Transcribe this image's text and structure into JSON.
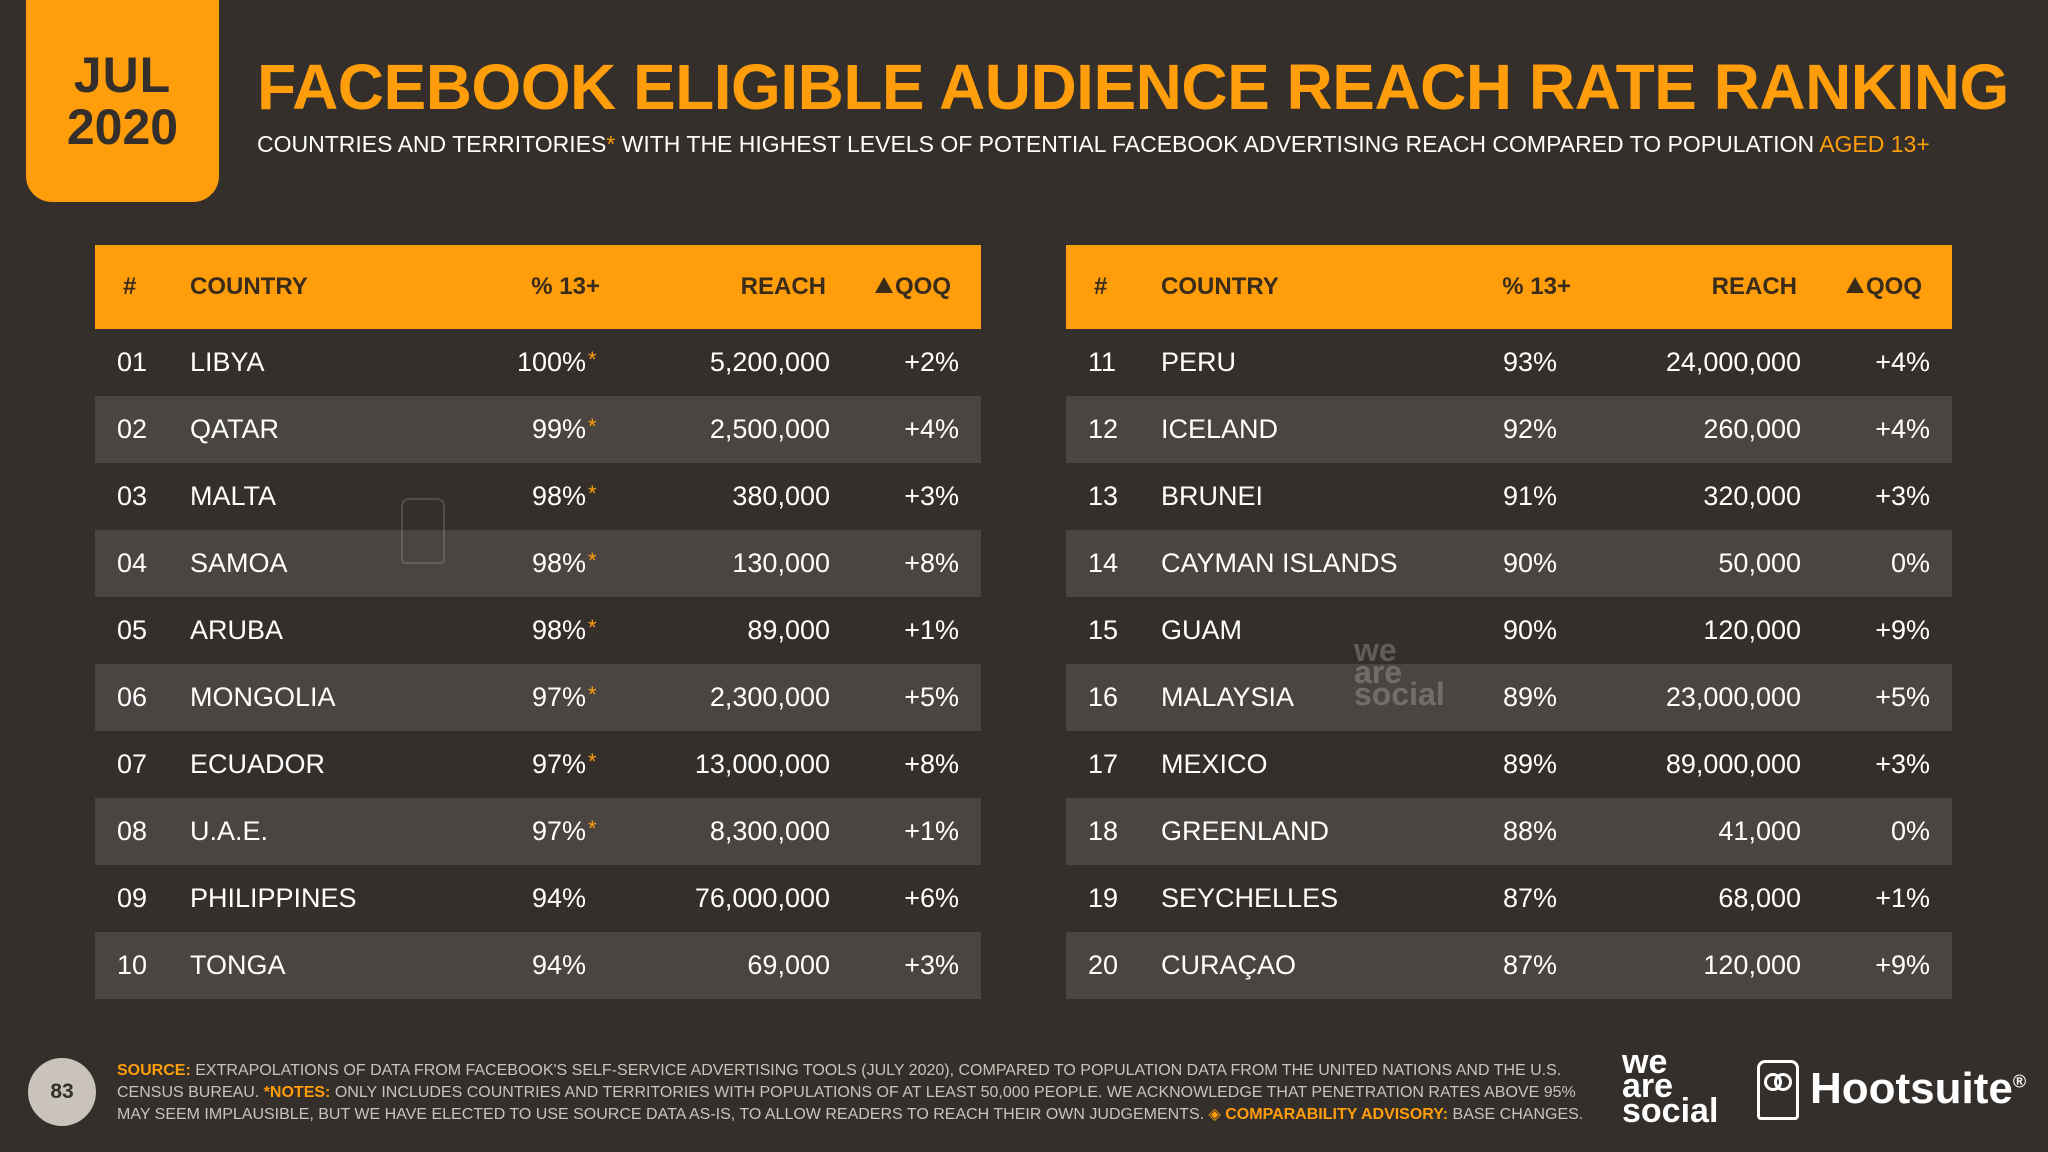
{
  "badge": {
    "month": "JUL",
    "year": "2020"
  },
  "title": "FACEBOOK ELIGIBLE AUDIENCE REACH RATE RANKING",
  "subtitle": {
    "part1": "COUNTRIES AND TERRITORIES",
    "asterisk": "*",
    "part2": " WITH THE HIGHEST LEVELS OF POTENTIAL FACEBOOK ADVERTISING REACH COMPARED TO POPULATION ",
    "aged": "AGED 13+"
  },
  "headers": {
    "num": "#",
    "country": "COUNTRY",
    "pct": "% 13+",
    "reach": "REACH",
    "qoq": "QOQ"
  },
  "left_rows": [
    {
      "num": "01",
      "country": "LIBYA",
      "pct": "100%",
      "star": "*",
      "reach": "5,200,000",
      "qoq": "+2%"
    },
    {
      "num": "02",
      "country": "QATAR",
      "pct": "99%",
      "star": "*",
      "reach": "2,500,000",
      "qoq": "+4%"
    },
    {
      "num": "03",
      "country": "MALTA",
      "pct": "98%",
      "star": "*",
      "reach": "380,000",
      "qoq": "+3%"
    },
    {
      "num": "04",
      "country": "SAMOA",
      "pct": "98%",
      "star": "*",
      "reach": "130,000",
      "qoq": "+8%"
    },
    {
      "num": "05",
      "country": "ARUBA",
      "pct": "98%",
      "star": "*",
      "reach": "89,000",
      "qoq": "+1%"
    },
    {
      "num": "06",
      "country": "MONGOLIA",
      "pct": "97%",
      "star": "*",
      "reach": "2,300,000",
      "qoq": "+5%"
    },
    {
      "num": "07",
      "country": "ECUADOR",
      "pct": "97%",
      "star": "*",
      "reach": "13,000,000",
      "qoq": "+8%"
    },
    {
      "num": "08",
      "country": "U.A.E.",
      "pct": "97%",
      "star": "*",
      "reach": "8,300,000",
      "qoq": "+1%"
    },
    {
      "num": "09",
      "country": "PHILIPPINES",
      "pct": "94%",
      "star": "",
      "reach": "76,000,000",
      "qoq": "+6%"
    },
    {
      "num": "10",
      "country": "TONGA",
      "pct": "94%",
      "star": "",
      "reach": "69,000",
      "qoq": "+3%"
    }
  ],
  "right_rows": [
    {
      "num": "11",
      "country": "PERU",
      "pct": "93%",
      "star": "",
      "reach": "24,000,000",
      "qoq": "+4%"
    },
    {
      "num": "12",
      "country": "ICELAND",
      "pct": "92%",
      "star": "",
      "reach": "260,000",
      "qoq": "+4%"
    },
    {
      "num": "13",
      "country": "BRUNEI",
      "pct": "91%",
      "star": "",
      "reach": "320,000",
      "qoq": "+3%"
    },
    {
      "num": "14",
      "country": "CAYMAN ISLANDS",
      "pct": "90%",
      "star": "",
      "reach": "50,000",
      "qoq": "0%"
    },
    {
      "num": "15",
      "country": "GUAM",
      "pct": "90%",
      "star": "",
      "reach": "120,000",
      "qoq": "+9%"
    },
    {
      "num": "16",
      "country": "MALAYSIA",
      "pct": "89%",
      "star": "",
      "reach": "23,000,000",
      "qoq": "+5%"
    },
    {
      "num": "17",
      "country": "MEXICO",
      "pct": "89%",
      "star": "",
      "reach": "89,000,000",
      "qoq": "+3%"
    },
    {
      "num": "18",
      "country": "GREENLAND",
      "pct": "88%",
      "star": "",
      "reach": "41,000",
      "qoq": "0%"
    },
    {
      "num": "19",
      "country": "SEYCHELLES",
      "pct": "87%",
      "star": "",
      "reach": "68,000",
      "qoq": "+1%"
    },
    {
      "num": "20",
      "country": "CURAÇAO",
      "pct": "87%",
      "star": "",
      "reach": "120,000",
      "qoq": "+9%"
    }
  ],
  "footer": {
    "page": "83",
    "source_label": "SOURCE:",
    "source_text": " EXTRAPOLATIONS OF DATA FROM FACEBOOK'S SELF-SERVICE ADVERTISING TOOLS (JULY 2020), COMPARED TO POPULATION DATA FROM THE UNITED NATIONS AND THE U.S. CENSUS BUREAU. ",
    "notes_label": "*NOTES:",
    "notes_text": " ONLY INCLUDES COUNTRIES AND TERRITORIES WITH POPULATIONS OF AT LEAST 50,000 PEOPLE. WE ACKNOWLEDGE THAT PENETRATION RATES ABOVE 95% MAY SEEM IMPLAUSIBLE, BUT WE HAVE ELECTED TO USE SOURCE DATA AS-IS, TO ALLOW READERS TO REACH THEIR OWN JUDGEMENTS. ",
    "advisory_label": "◈ COMPARABILITY ADVISORY:",
    "advisory_text": " BASE CHANGES."
  },
  "brands": {
    "was_line1": "we",
    "was_line2": "are",
    "was_line3": "social",
    "hootsuite": "Hootsuite",
    "hootsuite_reg": "®"
  },
  "icons": {
    "qoq_header": "triangle-up-icon",
    "watermark_owl": "owl-icon",
    "brand_owl": "owl-icon"
  },
  "colors": {
    "accent": "#ff9d0a",
    "background": "#342f2b",
    "row_alt": "#4a4541"
  }
}
